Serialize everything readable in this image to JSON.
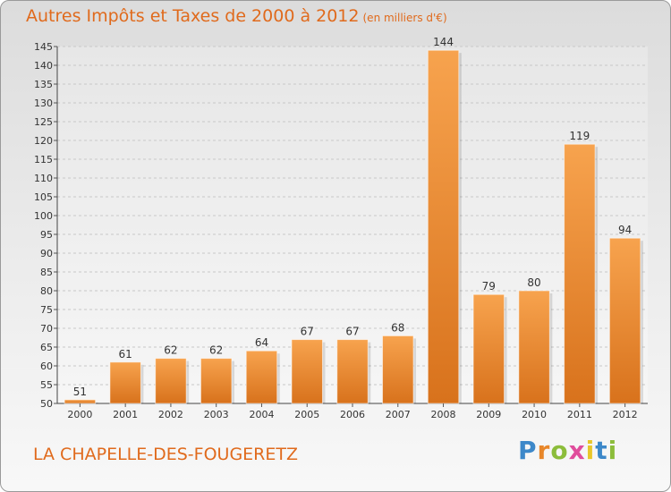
{
  "chart_title": "Autres Impôts et Taxes de 2000 à 2012",
  "chart_subtitle": "(en milliers d'€)",
  "place_name": "LA CHAPELLE-DES-FOUGERETZ",
  "logo": {
    "text": "Proxiti",
    "letters": [
      "P",
      "r",
      "o",
      "x",
      "i",
      "t",
      "i"
    ],
    "colors": [
      "#3d88c9",
      "#e8872a",
      "#8cbd3b",
      "#e04d9c",
      "#e8c62a",
      "#3d88c9",
      "#8cbd3b"
    ]
  },
  "colors": {
    "bar_light": "#f7a34e",
    "bar_dark": "#d8721c",
    "title": "#e06a1c",
    "grid": "#c8c8c8"
  },
  "chart_data": {
    "type": "bar",
    "title": "Autres Impôts et Taxes de 2000 à 2012",
    "subtitle": "(en milliers d'€)",
    "xlabel": "",
    "ylabel": "",
    "categories": [
      "2000",
      "2001",
      "2002",
      "2003",
      "2004",
      "2005",
      "2006",
      "2007",
      "2008",
      "2009",
      "2010",
      "2011",
      "2012"
    ],
    "values": [
      51,
      61,
      62,
      62,
      64,
      67,
      67,
      68,
      144,
      79,
      80,
      119,
      94
    ],
    "ylim": [
      50,
      145
    ],
    "yticks": [
      50,
      55,
      60,
      65,
      70,
      75,
      80,
      85,
      90,
      95,
      100,
      105,
      110,
      115,
      120,
      125,
      130,
      135,
      140,
      145
    ],
    "grid": true,
    "legend": "none",
    "data_labels": true
  }
}
